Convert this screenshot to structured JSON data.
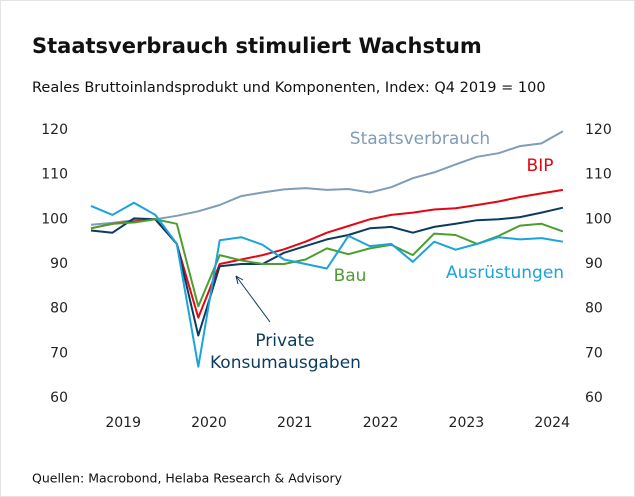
{
  "chart_data": {
    "type": "line",
    "title": "Staatsverbrauch stimuliert Wachstum",
    "subtitle": "Reales Bruttoinlandsprodukt und Komponenten, Index: Q4 2019 = 100",
    "source": "Quellen: Macrobond, Helaba Research & Advisory",
    "categories": [
      null,
      null,
      null,
      null,
      null,
      null,
      null,
      null,
      null,
      null,
      null,
      null,
      null,
      null,
      null,
      null,
      null,
      null,
      null,
      null,
      null,
      null,
      null
    ],
    "year_labels": [
      "2019",
      "2020",
      "2021",
      "2022",
      "2023",
      "2024"
    ],
    "ylim": [
      60,
      120
    ],
    "yticks": [
      60,
      70,
      80,
      90,
      100,
      110,
      120
    ],
    "y2lim": [
      60,
      120
    ],
    "y2ticks": [
      60,
      70,
      80,
      90,
      100,
      110,
      120
    ],
    "grid": false,
    "series": [
      {
        "name": "Staatsverbrauch",
        "color": "#7f9cb8",
        "values": [
          98.8,
          99.2,
          99.8,
          100,
          100.8,
          101.8,
          103.2,
          105.2,
          106,
          106.7,
          107,
          106.6,
          106.8,
          106,
          107.2,
          109.2,
          110.5,
          112.3,
          114,
          114.8,
          116.4,
          117,
          119.7
        ]
      },
      {
        "name": "BIP",
        "color": "#e30613",
        "values": [
          98,
          99,
          99.5,
          100,
          94.5,
          78,
          90,
          91,
          92,
          93.3,
          95,
          97,
          98.5,
          100,
          101,
          101.5,
          102.2,
          102.5,
          103.2,
          104,
          105,
          105.8,
          106.6
        ]
      },
      {
        "name": "Private Konsumausgaben",
        "color": "#0b3b5e",
        "values": [
          97.5,
          97,
          100.2,
          100,
          94.5,
          74,
          89.5,
          90,
          90,
          92.5,
          94,
          95.5,
          96.5,
          98,
          98.3,
          97,
          98.3,
          99,
          99.8,
          100,
          100.5,
          101.5,
          102.6
        ]
      },
      {
        "name": "Bau",
        "color": "#4c9e2f",
        "values": [
          98,
          99,
          99.3,
          100,
          99,
          80.5,
          92,
          90.8,
          90,
          90,
          91,
          93.5,
          92.2,
          93.5,
          94.3,
          92,
          96.8,
          96.5,
          94.5,
          96.3,
          98.6,
          99,
          97.3
        ]
      },
      {
        "name": "Ausrüstungen",
        "color": "#1aa3dc",
        "values": [
          103,
          101,
          103.7,
          101,
          94.5,
          67,
          95.3,
          96,
          94.3,
          91,
          90,
          89,
          96.3,
          94,
          94.5,
          90.5,
          95,
          93.2,
          94.5,
          96,
          95.5,
          95.8,
          95
        ]
      }
    ]
  }
}
